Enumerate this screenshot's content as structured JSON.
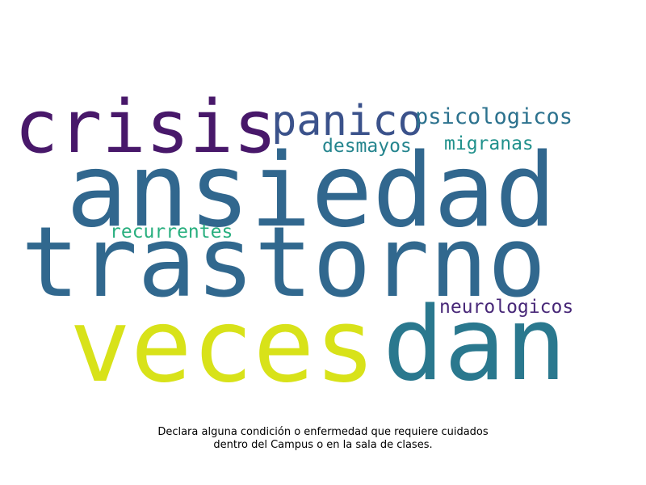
{
  "words": [
    {
      "text": "crisis",
      "color": "#48186a"
    },
    {
      "text": "panico",
      "color": "#3b528b"
    },
    {
      "text": "psicologicos",
      "color": "#2c728e"
    },
    {
      "text": "desmayos",
      "color": "#25858e"
    },
    {
      "text": "migranas",
      "color": "#21918c"
    },
    {
      "text": "ansiedad",
      "color": "#31678e"
    },
    {
      "text": "recurrentes",
      "color": "#29af7f"
    },
    {
      "text": "trastorno",
      "color": "#31688e"
    },
    {
      "text": "neurologicos",
      "color": "#482878"
    },
    {
      "text": "veces",
      "color": "#d8e219"
    },
    {
      "text": "dan",
      "color": "#2a788e"
    }
  ],
  "caption": {
    "line1": "Declara alguna condición o enfermedad que requiere cuidados",
    "line2": "dentro del Campus o en la sala de clases."
  }
}
